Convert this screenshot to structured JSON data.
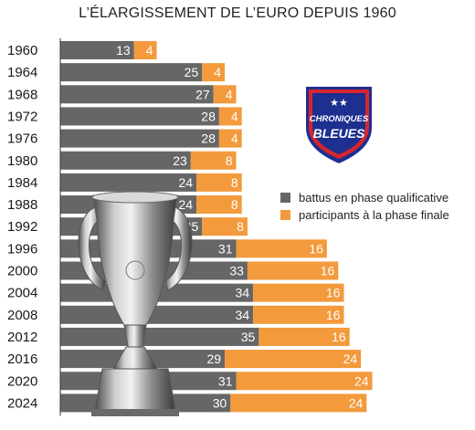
{
  "chart_data": {
    "type": "bar",
    "orientation": "horizontal",
    "stacked": true,
    "title": "L’ÉLARGISSEMENT DE L’EURO DEPUIS 1960",
    "categories": [
      "1960",
      "1964",
      "1968",
      "1972",
      "1976",
      "1980",
      "1984",
      "1988",
      "1992",
      "1996",
      "2000",
      "2004",
      "2008",
      "2012",
      "2016",
      "2020",
      "2024"
    ],
    "series": [
      {
        "name": "battus en phase qualificative",
        "color": "#666666",
        "values": [
          13,
          25,
          27,
          28,
          28,
          23,
          24,
          24,
          25,
          31,
          33,
          34,
          34,
          35,
          29,
          31,
          30
        ]
      },
      {
        "name": "participants à la phase finale",
        "color": "#f39a3c",
        "values": [
          4,
          4,
          4,
          4,
          4,
          8,
          8,
          8,
          8,
          16,
          16,
          16,
          16,
          16,
          24,
          24,
          24
        ]
      }
    ],
    "legend_position": "right",
    "grid": false
  },
  "logo": {
    "line1": "CHRONIQUES",
    "line2": "BLEUES",
    "stars": "★★",
    "colors": {
      "blue": "#1d2f8f",
      "red": "#d7262e",
      "white": "#ffffff"
    }
  },
  "decoration": {
    "trophy": "european-championship-trophy"
  }
}
